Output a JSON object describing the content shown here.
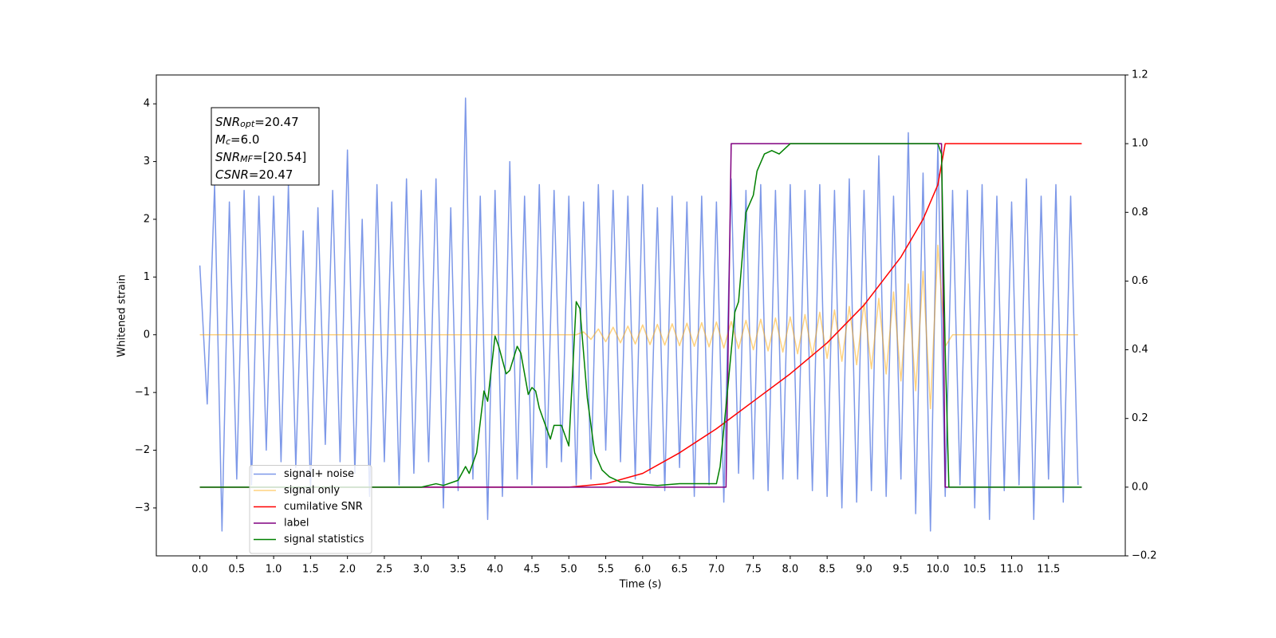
{
  "chart_data": {
    "type": "line",
    "xlabel": "Time (s)",
    "ylabel": "Whitened strain",
    "annotations": [
      {
        "name": "SNR",
        "sub": "opt",
        "text": "=20.47"
      },
      {
        "name": "M",
        "sub": "c",
        "text": "=6.0"
      },
      {
        "name": "SNR",
        "sub": "MF",
        "text": "=[20.54]"
      },
      {
        "name": "CSNR",
        "text": "=20.47"
      }
    ],
    "legend": "lower left",
    "xlim": [
      -0.59,
      12.54
    ],
    "ylim": [
      -3.83,
      4.5
    ],
    "y2lim": [
      -0.2,
      1.2
    ],
    "xticks": [
      {
        "value": 0,
        "label": "0.0"
      },
      0.5,
      {
        "value": 1,
        "label": "1.0"
      },
      1.5,
      {
        "value": 2,
        "label": "2.0"
      },
      2.5,
      {
        "value": 3,
        "label": "3.0"
      },
      3.5,
      {
        "value": 4,
        "label": "4.0"
      },
      4.5,
      {
        "value": 5,
        "label": "5.0"
      },
      5.5,
      {
        "value": 6,
        "label": "6.0"
      },
      6.5,
      {
        "value": 7,
        "label": "7.0"
      },
      7.5,
      {
        "value": 8,
        "label": "8.0"
      },
      8.5,
      {
        "value": 9,
        "label": "9.0"
      },
      9.5,
      {
        "value": 10,
        "label": "10.0"
      },
      10.5,
      {
        "value": 11,
        "label": "11.0"
      },
      11.5
    ],
    "yticks": [
      {
        "value": -3,
        "label": "−3"
      },
      {
        "value": -2,
        "label": "−2"
      },
      {
        "value": -1,
        "label": "−1"
      },
      0,
      1,
      2,
      3,
      4
    ],
    "y2ticks": [
      {
        "value": -0.2,
        "label": "−0.2"
      },
      {
        "value": 0,
        "label": "0.0"
      },
      0.2,
      0.4,
      0.6,
      0.8,
      {
        "value": 1,
        "label": "1.0"
      },
      1.2
    ],
    "series": [
      {
        "name": "signal+ noise",
        "color": "#6f8de6",
        "alpha": 0.9,
        "x": [
          0,
          0.1,
          0.2,
          0.3,
          0.4,
          0.5,
          0.6,
          0.7,
          0.8,
          0.9,
          1,
          1.1,
          1.2,
          1.3,
          1.4,
          1.5,
          1.6,
          1.7,
          1.8,
          1.9,
          2,
          2.1,
          2.2,
          2.3,
          2.4,
          2.5,
          2.6,
          2.7,
          2.8,
          2.9,
          3,
          3.1,
          3.2,
          3.3,
          3.4,
          3.5,
          3.6,
          3.7,
          3.8,
          3.9,
          4,
          4.1,
          4.2,
          4.3,
          4.4,
          4.5,
          4.6,
          4.7,
          4.8,
          4.9,
          5,
          5.1,
          5.2,
          5.3,
          5.4,
          5.5,
          5.6,
          5.7,
          5.8,
          5.9,
          6,
          6.1,
          6.2,
          6.3,
          6.4,
          6.5,
          6.6,
          6.7,
          6.8,
          6.9,
          7,
          7.1,
          7.2,
          7.3,
          7.4,
          7.5,
          7.6,
          7.7,
          7.8,
          7.9,
          8,
          8.1,
          8.2,
          8.3,
          8.4,
          8.5,
          8.6,
          8.7,
          8.8,
          8.9,
          9,
          9.1,
          9.2,
          9.3,
          9.4,
          9.5,
          9.6,
          9.7,
          9.8,
          9.9,
          10,
          10.1,
          10.2,
          10.3,
          10.4,
          10.5,
          10.6,
          10.7,
          10.8,
          10.9,
          11,
          11.1,
          11.2,
          11.3,
          11.4,
          11.5,
          11.6,
          11.7,
          11.8,
          11.9
        ],
        "values": [
          1.2,
          -1.2,
          2.6,
          -3.4,
          2.3,
          -2.5,
          2.5,
          -2.6,
          2.4,
          -2.0,
          2.4,
          -2.2,
          2.6,
          -2.3,
          1.8,
          -2.7,
          2.2,
          -1.9,
          2.5,
          -2.2,
          3.2,
          -2.4,
          2.0,
          -2.8,
          2.6,
          -2.2,
          2.3,
          -2.6,
          2.7,
          -2.4,
          2.5,
          -2.2,
          2.7,
          -3.0,
          2.2,
          -2.7,
          4.1,
          -2.5,
          2.4,
          -3.2,
          2.5,
          -2.8,
          3.0,
          -2.5,
          2.4,
          -2.6,
          2.6,
          -2.3,
          2.5,
          -2.2,
          2.4,
          -2.6,
          2.3,
          -2.5,
          2.6,
          -2.0,
          2.5,
          -2.2,
          2.4,
          -2.5,
          2.6,
          -2.4,
          2.2,
          -2.7,
          2.4,
          -2.3,
          2.3,
          -2.8,
          2.4,
          -2.6,
          2.3,
          -2.9,
          2.7,
          -2.4,
          2.5,
          -2.5,
          2.6,
          -2.7,
          2.5,
          -2.5,
          2.6,
          -2.5,
          2.5,
          -2.7,
          2.6,
          -2.8,
          2.5,
          -3.0,
          2.7,
          -2.9,
          2.5,
          -2.7,
          3.1,
          -2.8,
          2.4,
          -2.5,
          3.5,
          -3.1,
          2.8,
          -3.4,
          3.3,
          -2.8,
          2.5,
          -2.6,
          2.5,
          -3.0,
          2.6,
          -3.2,
          2.4,
          -2.7,
          2.3,
          -2.6,
          2.7,
          -3.2,
          2.4,
          -2.5,
          2.6,
          -2.9,
          2.4,
          -2.6
        ]
      },
      {
        "name": "signal only",
        "color": "#ffa500",
        "alpha": 0.5,
        "x": [
          0,
          0.1,
          0.2,
          0.3,
          0.4,
          0.5,
          0.6,
          0.7,
          0.8,
          0.9,
          1,
          1.1,
          1.2,
          1.3,
          1.4,
          1.5,
          1.6,
          1.7,
          1.8,
          1.9,
          2,
          2.1,
          2.2,
          2.3,
          2.4,
          2.5,
          2.6,
          2.7,
          2.8,
          2.9,
          3,
          3.1,
          3.2,
          3.3,
          3.4,
          3.5,
          3.6,
          3.7,
          3.8,
          3.9,
          4,
          4.1,
          4.2,
          4.3,
          4.4,
          4.5,
          4.6,
          4.7,
          4.8,
          4.9,
          5,
          5.1,
          5.2,
          5.3,
          5.4,
          5.5,
          5.6,
          5.7,
          5.8,
          5.9,
          6,
          6.1,
          6.2,
          6.3,
          6.4,
          6.5,
          6.6,
          6.7,
          6.8,
          6.9,
          7,
          7.1,
          7.2,
          7.3,
          7.4,
          7.5,
          7.6,
          7.7,
          7.8,
          7.9,
          8,
          8.1,
          8.2,
          8.3,
          8.4,
          8.5,
          8.6,
          8.7,
          8.8,
          8.9,
          9,
          9.1,
          9.2,
          9.3,
          9.4,
          9.5,
          9.6,
          9.7,
          9.8,
          9.9,
          10,
          10.1,
          10.2,
          10.3,
          10.4,
          10.5,
          10.6,
          10.7,
          10.8,
          10.9,
          11,
          11.1,
          11.2,
          11.3,
          11.4,
          11.5,
          11.6,
          11.7,
          11.8,
          11.9
        ],
        "values": [
          0,
          0,
          0,
          0,
          0,
          0,
          0,
          0,
          0,
          0,
          0,
          0,
          0,
          0,
          0,
          0,
          0,
          0,
          0,
          0,
          0,
          0,
          0,
          0,
          0,
          0,
          0,
          0,
          0,
          0,
          0,
          0,
          0,
          0,
          0,
          0,
          0,
          0,
          0,
          0,
          0,
          0,
          0,
          0,
          0,
          0,
          0,
          0,
          0,
          0,
          0,
          0,
          0.05,
          -0.08,
          0.1,
          -0.12,
          0.13,
          -0.14,
          0.15,
          -0.16,
          0.17,
          -0.17,
          0.18,
          -0.18,
          0.19,
          -0.19,
          0.2,
          -0.2,
          0.21,
          -0.21,
          0.22,
          -0.23,
          0.23,
          -0.24,
          0.25,
          -0.26,
          0.27,
          -0.28,
          0.29,
          -0.3,
          0.31,
          -0.33,
          0.35,
          -0.37,
          0.39,
          -0.41,
          0.43,
          -0.46,
          0.49,
          -0.52,
          0.55,
          -0.59,
          0.63,
          -0.68,
          0.74,
          -0.8,
          0.88,
          -0.97,
          1.1,
          -1.28,
          1.55,
          -0.2,
          0,
          0,
          0,
          0,
          0,
          0,
          0,
          0,
          0,
          0,
          0,
          0,
          0,
          0,
          0,
          0,
          0,
          0
        ]
      },
      {
        "name": "cumilative SNR",
        "color": "#ff0000",
        "axis": "y2",
        "x": [
          0,
          5,
          5.5,
          6,
          6.5,
          7,
          7.5,
          8,
          8.5,
          9,
          9.5,
          9.8,
          10,
          10.1,
          11.95
        ],
        "values": [
          0,
          0,
          0.01,
          0.04,
          0.1,
          0.17,
          0.25,
          0.33,
          0.42,
          0.53,
          0.67,
          0.78,
          0.88,
          1,
          1
        ]
      },
      {
        "name": "label",
        "color": "#800080",
        "axis": "y2",
        "x": [
          0,
          7.13,
          7.2,
          10.05,
          10.1,
          11.95
        ],
        "values": [
          0,
          0,
          1,
          1,
          0,
          0
        ]
      },
      {
        "name": "signal statistics",
        "color": "#008000",
        "axis": "y2",
        "x": [
          0,
          3,
          3.2,
          3.3,
          3.5,
          3.6,
          3.65,
          3.75,
          3.85,
          3.9,
          4,
          4.05,
          4.15,
          4.2,
          4.3,
          4.35,
          4.45,
          4.5,
          4.55,
          4.6,
          4.75,
          4.8,
          4.9,
          5,
          5.1,
          5.15,
          5.25,
          5.35,
          5.45,
          5.55,
          5.7,
          5.8,
          5.9,
          6.2,
          6.5,
          7,
          7.05,
          7.15,
          7.25,
          7.3,
          7.4,
          7.5,
          7.55,
          7.65,
          7.75,
          7.85,
          7.95,
          8,
          10,
          10.05,
          10.1,
          10.15,
          11.95
        ],
        "values": [
          0,
          0,
          0.01,
          0.005,
          0.02,
          0.06,
          0.04,
          0.1,
          0.28,
          0.25,
          0.44,
          0.41,
          0.33,
          0.34,
          0.41,
          0.39,
          0.27,
          0.29,
          0.28,
          0.23,
          0.14,
          0.18,
          0.18,
          0.12,
          0.54,
          0.52,
          0.26,
          0.1,
          0.05,
          0.03,
          0.015,
          0.015,
          0.01,
          0.005,
          0.01,
          0.01,
          0.06,
          0.28,
          0.51,
          0.54,
          0.8,
          0.85,
          0.92,
          0.97,
          0.98,
          0.97,
          0.99,
          1,
          1,
          0.97,
          0.4,
          0,
          0
        ]
      }
    ]
  }
}
